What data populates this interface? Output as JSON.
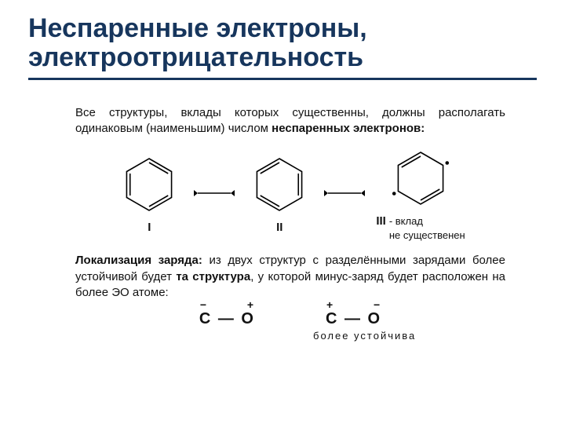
{
  "title": "Неспаренные электроны, электроотрицательность",
  "colors": {
    "title": "#17365d",
    "underline": "#17365d",
    "text": "#111111",
    "bg": "#ffffff",
    "stroke": "#000000"
  },
  "para1_plain": "Все структуры, вклады которых существенны, должны располагать одинаковым (наименьшим) числом ",
  "para1_bold": "неспаренных электронов:",
  "hex": {
    "size": 66,
    "stroke_width": 1.6,
    "labels": [
      "I",
      "II",
      "III"
    ],
    "note_suffix": "- вклад",
    "note_line2": "не существенен",
    "structures": [
      {
        "id": "I",
        "bonds": [
          [
            0,
            1
          ],
          [
            2,
            3
          ],
          [
            4,
            5
          ]
        ],
        "dots": []
      },
      {
        "id": "II",
        "bonds": [
          [
            1,
            2
          ],
          [
            3,
            4
          ],
          [
            5,
            0
          ]
        ],
        "dots": []
      },
      {
        "id": "III",
        "bonds": [
          [
            2,
            3
          ],
          [
            5,
            0
          ]
        ],
        "dots": [
          1,
          4
        ]
      }
    ]
  },
  "arrow": {
    "stroke_width": 1.4,
    "head": 5,
    "len": 52
  },
  "para2_lead": "Локализация заряда:",
  "para2_rest_a": " из двух структур с разделёнными зарядами более устойчивой будет ",
  "para2_bold_mid": "та структура",
  "para2_rest_b": ", у которой минус-заряд будет расположен на более ЭО атоме:",
  "bond_text": "C — O",
  "bond_a": {
    "c_charge": "−",
    "o_charge": "+"
  },
  "bond_b": {
    "c_charge": "+",
    "o_charge": "−",
    "caption": "более устойчива"
  }
}
